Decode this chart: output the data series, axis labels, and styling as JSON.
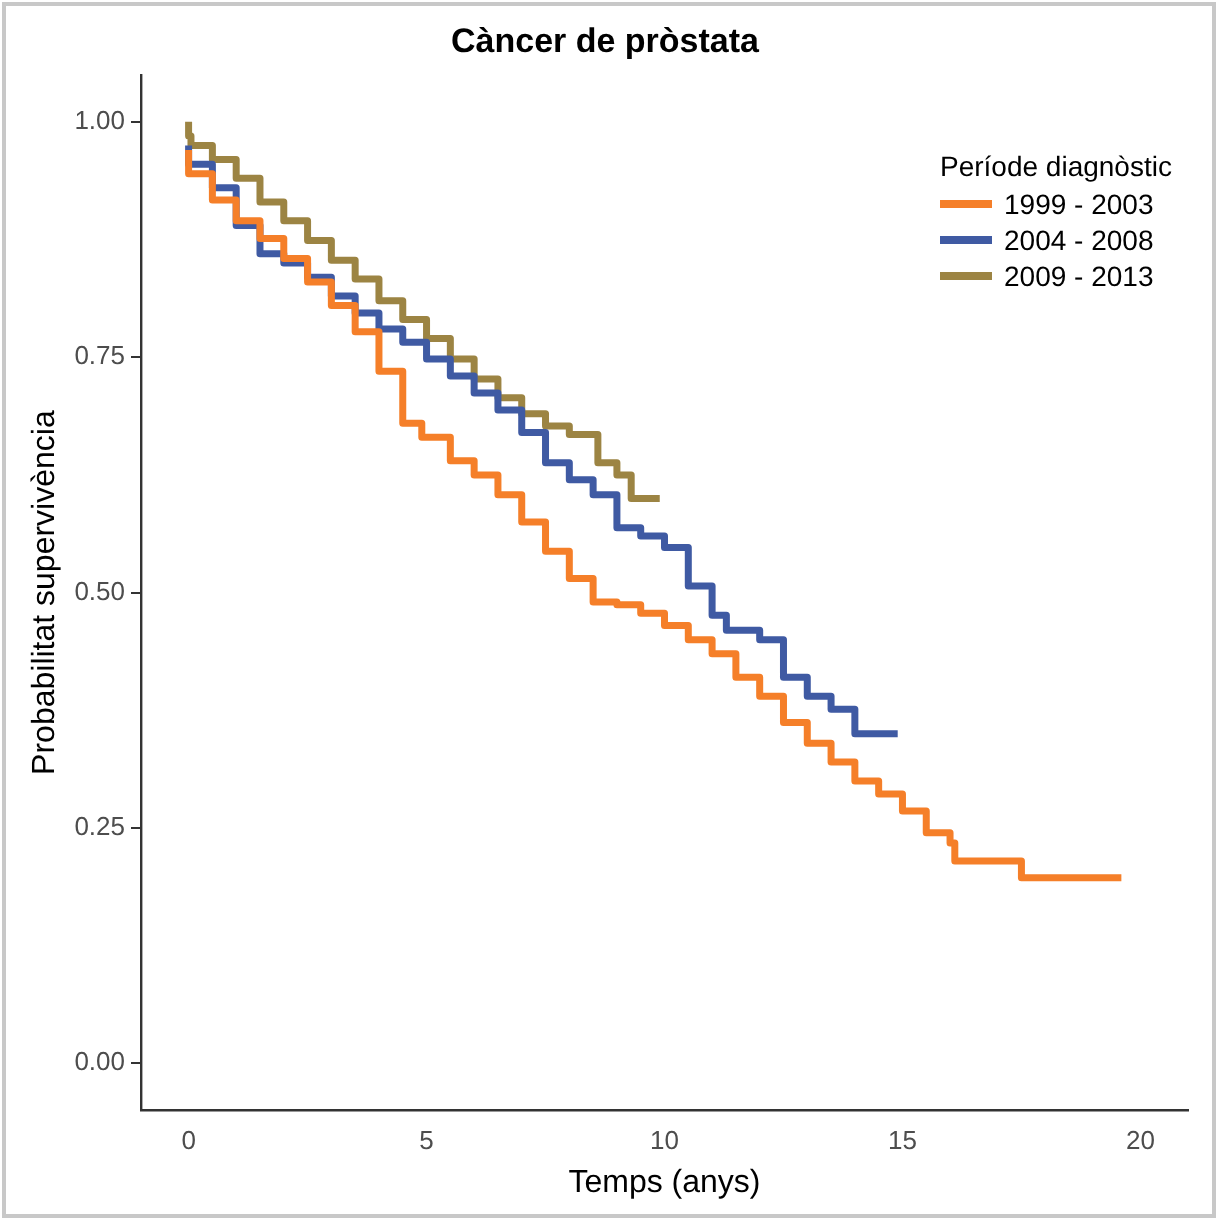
{
  "chart_data": {
    "type": "step",
    "title": "Càncer de pròstata",
    "xlabel": "Temps (anys)",
    "ylabel": "Probabilitat supervivència",
    "legend_title": "Període diagnòstic",
    "xlim": [
      -1,
      21
    ],
    "xticks": [
      0,
      5,
      10,
      15,
      20
    ],
    "ylim": [
      -0.05,
      1.05
    ],
    "yticks": [
      {
        "value": 0,
        "label": "0.00"
      },
      {
        "value": 0.25,
        "label": "0.25"
      },
      {
        "value": 0.5,
        "label": "0.50"
      },
      {
        "value": 0.75,
        "label": "0.75"
      },
      {
        "value": 1,
        "label": "1.00"
      }
    ],
    "grid": false,
    "legend": "top right",
    "marker": "none",
    "line_style": "solid",
    "series": [
      {
        "name": "1999 - 2003",
        "color": "#f57f29",
        "x": [
          0,
          0.5,
          1,
          1.5,
          2,
          2.5,
          3,
          3.5,
          4,
          4.5,
          4.9,
          5.5,
          6,
          6.5,
          7,
          7.5,
          8,
          8.5,
          9,
          9.5,
          10,
          10.5,
          11,
          11.5,
          12,
          12.5,
          13,
          13.5,
          14,
          14.5,
          15,
          15.5,
          16,
          16.1,
          17.5,
          18.6,
          19.6
        ],
        "values": [
          0.97,
          0.945,
          0.917,
          0.895,
          0.876,
          0.855,
          0.83,
          0.805,
          0.777,
          0.735,
          0.68,
          0.665,
          0.64,
          0.625,
          0.604,
          0.575,
          0.544,
          0.515,
          0.49,
          0.487,
          0.478,
          0.465,
          0.45,
          0.435,
          0.41,
          0.39,
          0.362,
          0.34,
          0.32,
          0.3,
          0.286,
          0.268,
          0.245,
          0.234,
          0.215,
          0.197,
          0.197
        ]
      },
      {
        "name": "2004 - 2008",
        "color": "#3f5aa3",
        "x": [
          0,
          0.5,
          1,
          1.5,
          2,
          2.5,
          3,
          3.5,
          4,
          4.5,
          5,
          5.5,
          6,
          6.5,
          7,
          7.5,
          8,
          8.5,
          9,
          9.5,
          10,
          10.5,
          11,
          11.3,
          12,
          12.5,
          13,
          13.5,
          14,
          14.2,
          14.9
        ],
        "values": [
          0.975,
          0.955,
          0.93,
          0.89,
          0.86,
          0.85,
          0.835,
          0.815,
          0.797,
          0.78,
          0.766,
          0.748,
          0.73,
          0.712,
          0.694,
          0.67,
          0.638,
          0.62,
          0.604,
          0.569,
          0.56,
          0.548,
          0.507,
          0.476,
          0.46,
          0.45,
          0.41,
          0.39,
          0.376,
          0.35,
          0.35
        ]
      },
      {
        "name": "2009 - 2013",
        "color": "#9c8443",
        "x": [
          0,
          0.05,
          0.5,
          1,
          1.5,
          2,
          2.5,
          3,
          3.5,
          4,
          4.5,
          5,
          5.5,
          6,
          6.5,
          7,
          7.5,
          8,
          8.6,
          9,
          9.3,
          9.4,
          9.9
        ],
        "values": [
          1.0,
          0.985,
          0.975,
          0.96,
          0.94,
          0.915,
          0.895,
          0.874,
          0.853,
          0.833,
          0.81,
          0.79,
          0.77,
          0.748,
          0.727,
          0.707,
          0.69,
          0.677,
          0.668,
          0.638,
          0.625,
          0.6,
          0.6
        ]
      }
    ]
  }
}
